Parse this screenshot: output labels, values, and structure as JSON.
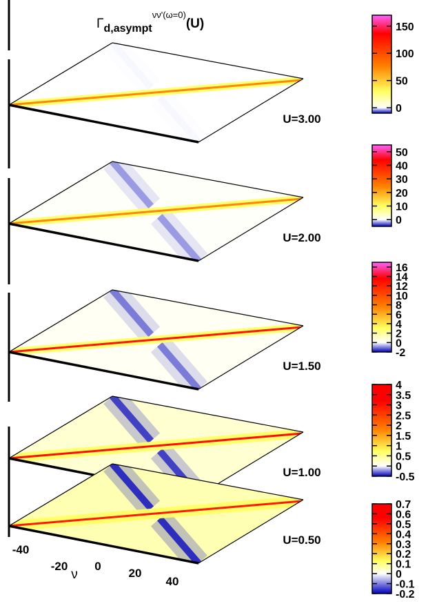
{
  "chart_data": {
    "type": "heatmap",
    "title": {
      "main": "Γ",
      "sub": "d,asympt",
      "sup": "νν'(ω=0)",
      "tail": "(U)"
    },
    "x_axis": {
      "label": "ν",
      "ticks": [
        -40,
        -20,
        0,
        20,
        40
      ]
    },
    "x_range": [
      -50,
      50
    ],
    "y_range": [
      -50,
      50
    ],
    "panels": [
      {
        "label": "U=3.00",
        "u": 3.0,
        "cb_range": [
          -10,
          170
        ],
        "cb_ticks": [
          0,
          50,
          100,
          150
        ],
        "cb_tick_labels": [
          "0",
          "50",
          "100",
          "150"
        ],
        "diagonal_strength": 0.95,
        "antidiagonal_strength": 0.03,
        "background_strength": 0.0
      },
      {
        "label": "U=2.00",
        "u": 2.0,
        "cb_range": [
          -5,
          55
        ],
        "cb_ticks": [
          0,
          10,
          20,
          30,
          40,
          50
        ],
        "cb_tick_labels": [
          "0",
          "10",
          "20",
          "30",
          "40",
          "50"
        ],
        "diagonal_strength": 0.95,
        "antidiagonal_strength": 0.4,
        "background_strength": 0.02
      },
      {
        "label": "U=1.50",
        "u": 1.5,
        "cb_range": [
          -2,
          17
        ],
        "cb_ticks": [
          -2,
          0,
          2,
          4,
          6,
          8,
          10,
          12,
          14,
          16
        ],
        "cb_tick_labels": [
          "-2",
          "0",
          "2",
          "4",
          "6",
          "8",
          "10",
          "12",
          "14",
          "16"
        ],
        "diagonal_strength": 0.92,
        "antidiagonal_strength": 0.55,
        "background_strength": 0.05
      },
      {
        "label": "U=1.00",
        "u": 1.0,
        "cb_range": [
          -0.5,
          4
        ],
        "cb_ticks": [
          -0.5,
          0,
          0.5,
          1,
          1.5,
          2,
          2.5,
          3,
          3.5,
          4
        ],
        "cb_tick_labels": [
          "-0.5",
          "0",
          "0.5",
          "1",
          "1.5",
          "2",
          "2.5",
          "3",
          "3.5",
          "4"
        ],
        "diagonal_strength": 0.95,
        "antidiagonal_strength": 0.85,
        "background_strength": 0.18
      },
      {
        "label": "U=0.50",
        "u": 0.5,
        "cb_range": [
          -0.2,
          0.7
        ],
        "cb_ticks": [
          -0.2,
          -0.1,
          0,
          0.1,
          0.2,
          0.3,
          0.4,
          0.5,
          0.6,
          0.7
        ],
        "cb_tick_labels": [
          "-0.2",
          "-0.1",
          "0",
          "0.1",
          "0.2",
          "0.3",
          "0.4",
          "0.5",
          "0.6",
          "0.7"
        ],
        "diagonal_strength": 0.9,
        "antidiagonal_strength": 0.95,
        "background_strength": 0.3
      }
    ],
    "grid": false,
    "legend": "colorbar-right"
  },
  "colors": {
    "negative": "#0000c0",
    "zero": "#ffffff",
    "low": "#ffff60",
    "mid": "#ff8000",
    "high": "#ff0000",
    "top": "#ff60ff",
    "axis": "#000000"
  }
}
